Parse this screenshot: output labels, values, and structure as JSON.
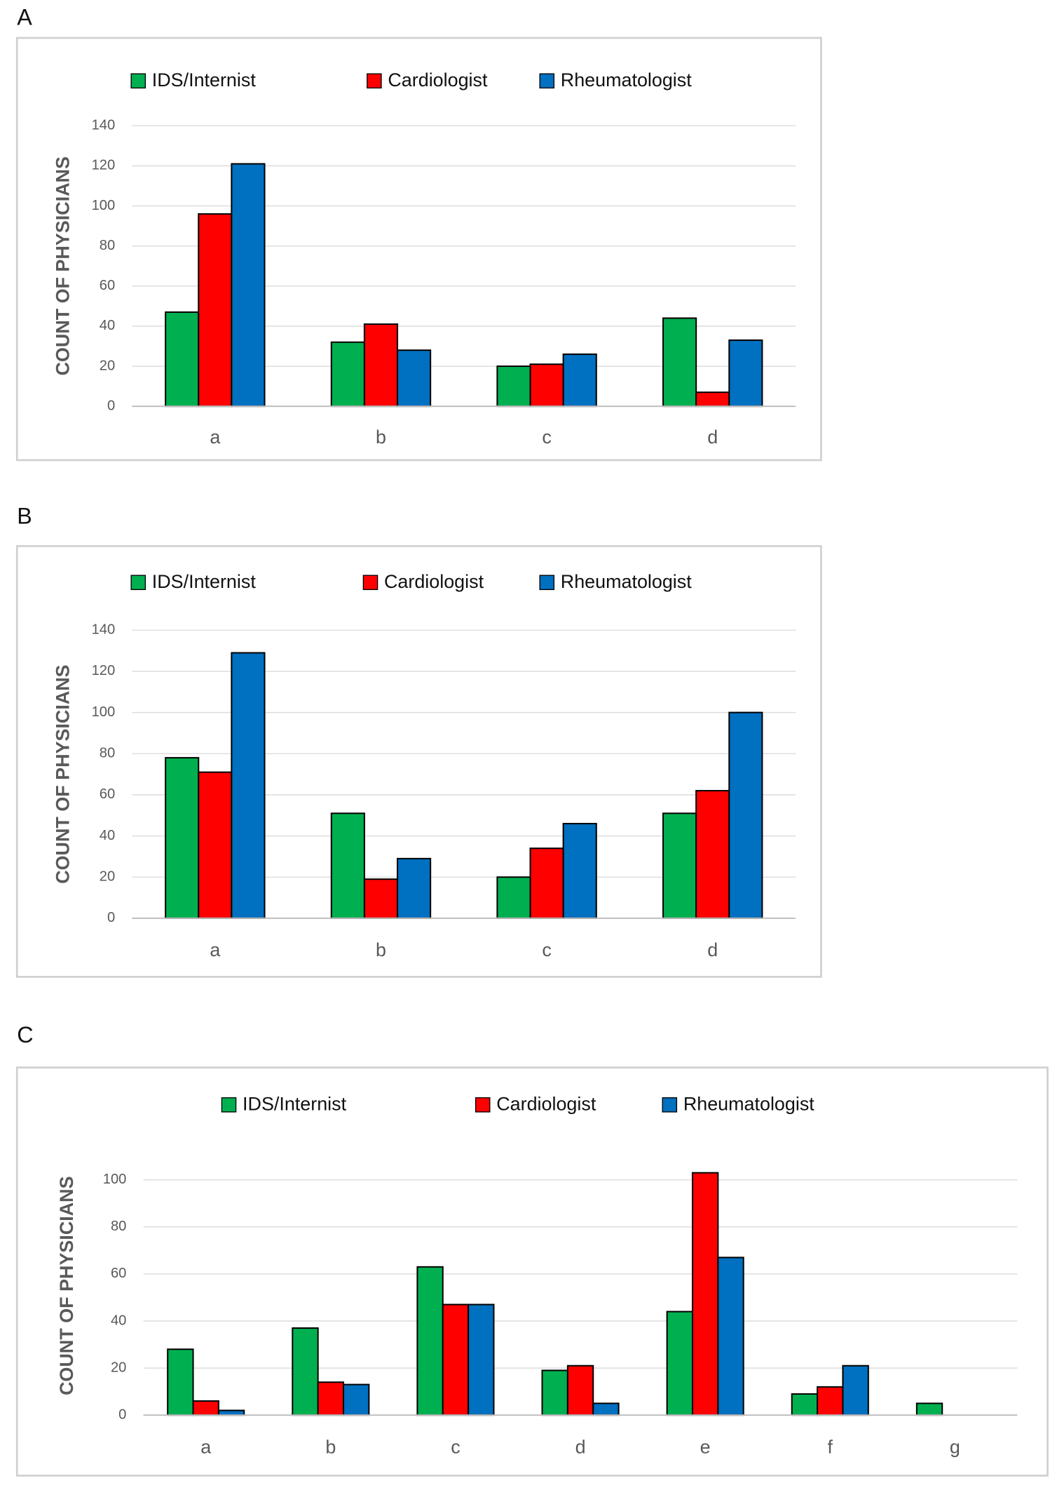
{
  "chart_data": [
    {
      "type": "bar",
      "panel": "A",
      "y_label": "COUNT OF PHYSICIANS",
      "categories": [
        "a",
        "b",
        "c",
        "d"
      ],
      "series": [
        {
          "name": "IDS/Internist",
          "color": "#00b050",
          "values": [
            47,
            32,
            20,
            44
          ]
        },
        {
          "name": "Cardiologist",
          "color": "#ff0000",
          "values": [
            96,
            41,
            21,
            7
          ]
        },
        {
          "name": "Rheumatologist",
          "color": "#0070c0",
          "values": [
            121,
            28,
            26,
            33
          ]
        }
      ],
      "ylim": [
        0,
        140
      ],
      "yticks": [
        0,
        20,
        40,
        60,
        80,
        100,
        120,
        140
      ],
      "grid": true
    },
    {
      "type": "bar",
      "panel": "B",
      "y_label": "COUNT OF PHYSICIANS",
      "categories": [
        "a",
        "b",
        "c",
        "d"
      ],
      "series": [
        {
          "name": "IDS/Internist",
          "color": "#00b050",
          "values": [
            78,
            51,
            20,
            51
          ]
        },
        {
          "name": "Cardiologist",
          "color": "#ff0000",
          "values": [
            71,
            19,
            34,
            62
          ]
        },
        {
          "name": "Rheumatologist",
          "color": "#0070c0",
          "values": [
            129,
            29,
            46,
            100
          ]
        }
      ],
      "ylim": [
        0,
        140
      ],
      "yticks": [
        0,
        20,
        40,
        60,
        80,
        100,
        120,
        140
      ],
      "grid": true
    },
    {
      "type": "bar",
      "panel": "C",
      "y_label": "COUNT OF PHYSICIANS",
      "categories": [
        "a",
        "b",
        "c",
        "d",
        "e",
        "f",
        "g"
      ],
      "series": [
        {
          "name": "IDS/Internist",
          "color": "#00b050",
          "values": [
            28,
            37,
            63,
            19,
            44,
            9,
            5
          ]
        },
        {
          "name": "Cardiologist",
          "color": "#ff0000",
          "values": [
            6,
            14,
            47,
            21,
            103,
            12,
            0
          ]
        },
        {
          "name": "Rheumatologist",
          "color": "#0070c0",
          "values": [
            2,
            13,
            47,
            5,
            67,
            21,
            0
          ]
        }
      ],
      "ylim": [
        0,
        110
      ],
      "yticks": [
        0,
        20,
        40,
        60,
        80,
        100
      ],
      "grid": true
    }
  ]
}
